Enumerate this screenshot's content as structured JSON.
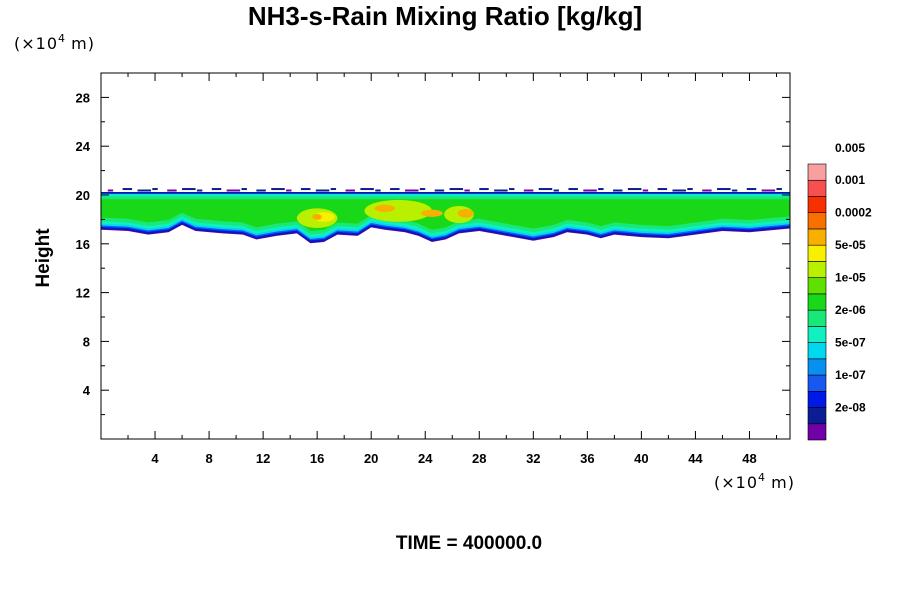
{
  "chart_data": {
    "type": "heatmap",
    "title": "NH3-s-Rain Mixing Ratio [kg/kg]",
    "xlabel": "",
    "ylabel": "Height",
    "x_unit_base": "(×10",
    "x_unit_exp": "4",
    "x_unit_tail": " m)",
    "y_unit_base": "(×10",
    "y_unit_exp": "4",
    "y_unit_tail": " m)",
    "xlim": [
      0,
      51
    ],
    "ylim": [
      0,
      30
    ],
    "x_ticks": [
      4,
      8,
      12,
      16,
      20,
      24,
      28,
      32,
      36,
      40,
      44,
      48
    ],
    "y_ticks": [
      4,
      8,
      12,
      16,
      20,
      24,
      28
    ],
    "time_label": "TIME = 400000.0",
    "colorbar": {
      "colors": [
        "#7000a8",
        "#0c1c94",
        "#0018e8",
        "#1858f0",
        "#0890f0",
        "#00d8f0",
        "#10f0c0",
        "#18e878",
        "#18d818",
        "#60e000",
        "#b8f000",
        "#f8f000",
        "#f8b000",
        "#f87000",
        "#f83000",
        "#f85050",
        "#f8a0a0"
      ],
      "labels": [
        "2e-08",
        "1e-07",
        "5e-07",
        "2e-06",
        "1e-05",
        "5e-05",
        "0.0002",
        "0.001",
        "0.005"
      ]
    },
    "layer": {
      "top_height": 20.2,
      "base_height": [
        [
          0,
          17.2
        ],
        [
          2,
          17.1
        ],
        [
          3.5,
          16.8
        ],
        [
          5,
          17.0
        ],
        [
          6,
          17.6
        ],
        [
          7,
          17.1
        ],
        [
          9,
          16.9
        ],
        [
          10.5,
          16.8
        ],
        [
          11.5,
          16.4
        ],
        [
          13,
          16.7
        ],
        [
          14.5,
          16.9
        ],
        [
          15.5,
          16.1
        ],
        [
          16.5,
          16.2
        ],
        [
          17.5,
          16.8
        ],
        [
          19,
          16.7
        ],
        [
          20,
          17.4
        ],
        [
          21,
          17.2
        ],
        [
          22.5,
          17.0
        ],
        [
          23.5,
          16.7
        ],
        [
          24.5,
          16.2
        ],
        [
          25.5,
          16.4
        ],
        [
          26.5,
          16.9
        ],
        [
          28,
          17.1
        ],
        [
          29.5,
          16.8
        ],
        [
          31,
          16.5
        ],
        [
          32,
          16.3
        ],
        [
          33.5,
          16.6
        ],
        [
          34.5,
          17.0
        ],
        [
          36,
          16.8
        ],
        [
          37,
          16.5
        ],
        [
          38,
          16.8
        ],
        [
          40,
          16.6
        ],
        [
          42,
          16.5
        ],
        [
          44,
          16.8
        ],
        [
          46,
          17.1
        ],
        [
          48,
          17.0
        ],
        [
          50,
          17.2
        ],
        [
          51,
          17.3
        ]
      ],
      "cores": [
        {
          "x": 16.0,
          "y": 18.1,
          "w": 3.0,
          "h": 1.6,
          "level": 10
        },
        {
          "x": 22.0,
          "y": 18.7,
          "w": 5.0,
          "h": 1.8,
          "level": 10
        },
        {
          "x": 26.5,
          "y": 18.4,
          "w": 2.2,
          "h": 1.4,
          "level": 10
        },
        {
          "x": 16.5,
          "y": 18.2,
          "w": 1.6,
          "h": 0.8,
          "level": 11
        },
        {
          "x": 21.0,
          "y": 18.9,
          "w": 1.5,
          "h": 0.6,
          "level": 12
        },
        {
          "x": 24.5,
          "y": 18.5,
          "w": 1.6,
          "h": 0.6,
          "level": 12
        },
        {
          "x": 27.0,
          "y": 18.5,
          "w": 1.2,
          "h": 0.7,
          "level": 12
        },
        {
          "x": 16.0,
          "y": 18.2,
          "w": 0.7,
          "h": 0.5,
          "level": 12
        }
      ]
    }
  }
}
